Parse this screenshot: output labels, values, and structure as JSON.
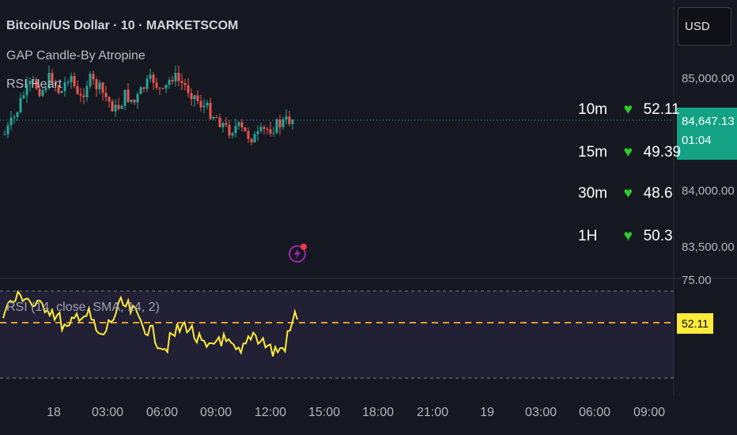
{
  "header": {
    "symbol_title": "Bitcoin/US Dollar · 10 · MARKETSCOM",
    "indicator_1": "GAP Candle-By Atropine",
    "indicator_2": "RSI Heart"
  },
  "currency_button": "USD",
  "price_axis": [
    "85,000.00",
    "84,000.00",
    "83,500.00"
  ],
  "current_price": {
    "price": "84,647.13",
    "countdown": "01:04"
  },
  "rsi_table": [
    {
      "timeframe": "10m",
      "icon": "heart",
      "value": "52.11"
    },
    {
      "timeframe": "15m",
      "icon": "heart",
      "value": "49.39"
    },
    {
      "timeframe": "30m",
      "icon": "heart",
      "value": "48.6"
    },
    {
      "timeframe": "1H",
      "icon": "heart",
      "value": "50.3"
    }
  ],
  "rsi_panel": {
    "legend": "RSI (14, close, SMA, 14, 2)",
    "scale_top": "75.00",
    "current_value": "52.11"
  },
  "time_axis": [
    "18",
    "03:00",
    "06:00",
    "09:00",
    "12:00",
    "15:00",
    "18:00",
    "21:00",
    "19",
    "03:00",
    "06:00",
    "09:00"
  ],
  "colors": {
    "background": "#151820",
    "up_candle": "#26a69a",
    "down_candle": "#ef5350",
    "rsi_line": "#ffeb3b",
    "rsi_band": "#7e57c2",
    "current_price": "#14a284",
    "heart": "#2ecc2e"
  },
  "icons": {
    "alert": "lightning-alert-icon",
    "heart": "green-heart-icon"
  }
}
